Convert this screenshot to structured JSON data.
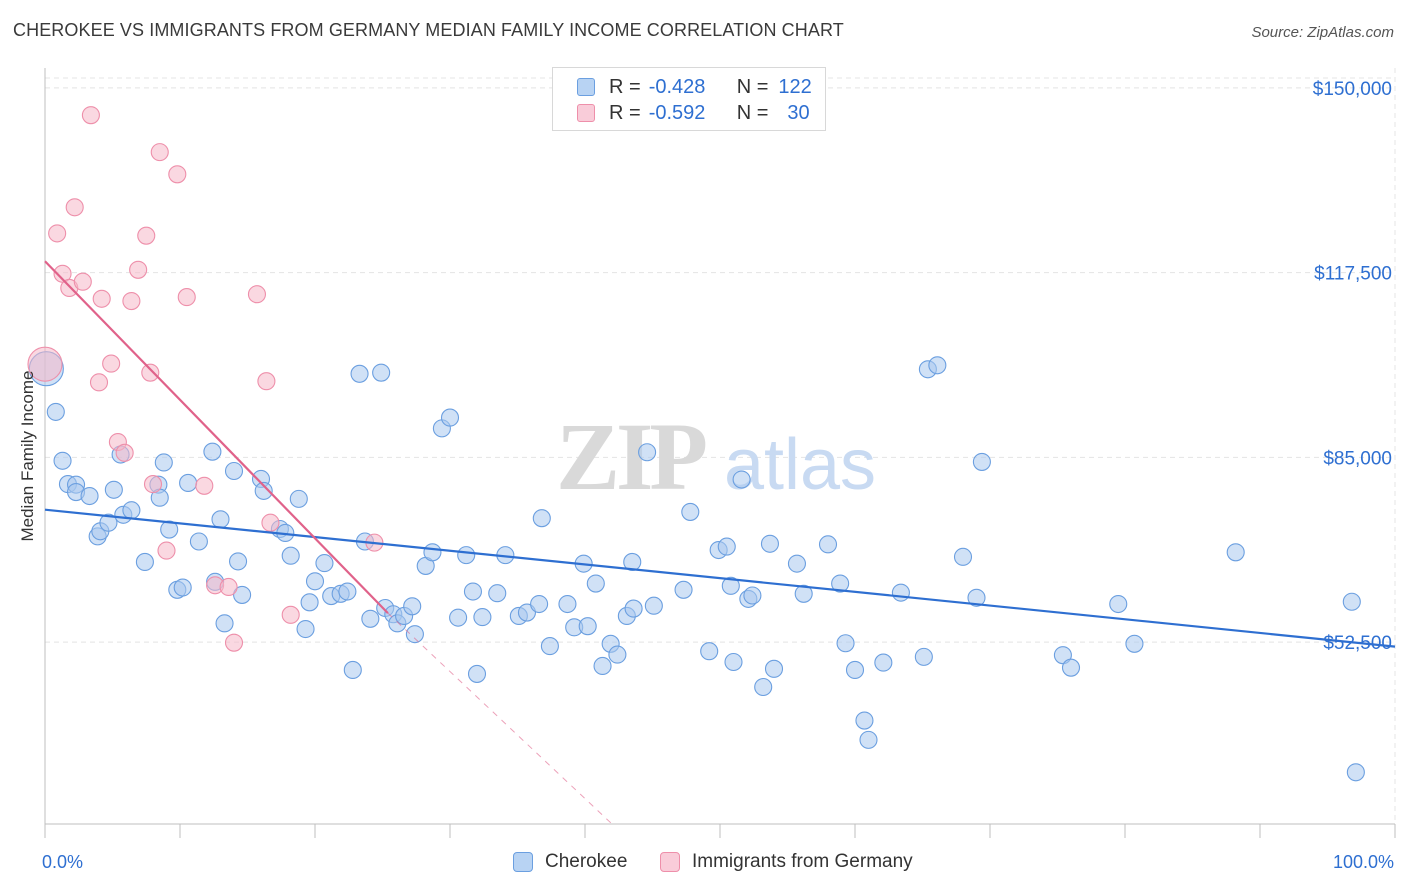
{
  "title": "CHEROKEE VS IMMIGRANTS FROM GERMANY MEDIAN FAMILY INCOME CORRELATION CHART",
  "source": "Source: ZipAtlas.com",
  "watermark": {
    "zip": "ZIP",
    "atlas": "atlas"
  },
  "legend_top": {
    "rows": [
      {
        "r_label": "R =",
        "r_value": "-0.428",
        "n_label": "N =",
        "n_value": "122"
      },
      {
        "r_label": "R =",
        "r_value": "-0.592",
        "n_label": "N =",
        "n_value": "30"
      }
    ]
  },
  "legend_bottom": [
    {
      "label": "Cherokee"
    },
    {
      "label": "Immigrants from Germany"
    }
  ],
  "colors": {
    "cherokee_fill": "#a9c9ef",
    "cherokee_stroke": "#6b9fe0",
    "cherokee_line": "#2e6fd1",
    "germany_fill": "#f6b8c9",
    "germany_stroke": "#ee8faa",
    "germany_line": "#e0628a",
    "axis_label": "#2e6fd1",
    "grid": "#e4e4e4"
  },
  "chart_data": {
    "type": "scatter",
    "title": "CHEROKEE VS IMMIGRANTS FROM GERMANY MEDIAN FAMILY INCOME CORRELATION CHART",
    "xlabel": "",
    "ylabel": "Median Family Income",
    "x_tick_labels": [
      "0.0%",
      "100.0%"
    ],
    "y_tick_labels": [
      "$150,000",
      "$117,500",
      "$85,000",
      "$52,500"
    ],
    "y_ticks": [
      150000,
      117500,
      85000,
      52500
    ],
    "xlim": [
      0,
      100
    ],
    "ylim": [
      20500,
      153500
    ],
    "grid": true,
    "series": [
      {
        "name": "Cherokee",
        "stats": {
          "R": -0.428,
          "N": 122
        },
        "trend": {
          "x": [
            0,
            100
          ],
          "y": [
            75800,
            51700
          ]
        },
        "points": [
          [
            0.1,
            100600
          ],
          [
            0.8,
            93000
          ],
          [
            1.3,
            84400
          ],
          [
            1.7,
            80300
          ],
          [
            2.3,
            80200
          ],
          [
            2.3,
            78900
          ],
          [
            3.3,
            78200
          ],
          [
            3.9,
            71100
          ],
          [
            4.1,
            72000
          ],
          [
            4.7,
            73500
          ],
          [
            5.6,
            85500
          ],
          [
            5.8,
            74900
          ],
          [
            5.1,
            79300
          ],
          [
            6.4,
            75700
          ],
          [
            7.4,
            66600
          ],
          [
            8.4,
            80200
          ],
          [
            8.5,
            77900
          ],
          [
            8.8,
            84100
          ],
          [
            9.2,
            72300
          ],
          [
            9.8,
            61700
          ],
          [
            10.2,
            62100
          ],
          [
            10.6,
            80500
          ],
          [
            11.4,
            70200
          ],
          [
            12.4,
            86000
          ],
          [
            12.6,
            63100
          ],
          [
            13.0,
            74100
          ],
          [
            13.3,
            55800
          ],
          [
            14.0,
            82600
          ],
          [
            14.3,
            66700
          ],
          [
            14.6,
            60800
          ],
          [
            16.0,
            81200
          ],
          [
            16.2,
            79100
          ],
          [
            17.4,
            72400
          ],
          [
            17.8,
            71700
          ],
          [
            18.2,
            67700
          ],
          [
            18.8,
            77700
          ],
          [
            19.3,
            54800
          ],
          [
            19.6,
            59500
          ],
          [
            20.0,
            63200
          ],
          [
            20.7,
            66400
          ],
          [
            21.2,
            60600
          ],
          [
            21.9,
            61000
          ],
          [
            22.4,
            61400
          ],
          [
            22.8,
            47600
          ],
          [
            23.3,
            99700
          ],
          [
            23.7,
            70200
          ],
          [
            24.1,
            56600
          ],
          [
            24.9,
            99900
          ],
          [
            25.2,
            58500
          ],
          [
            25.8,
            57400
          ],
          [
            26.1,
            55800
          ],
          [
            26.6,
            57100
          ],
          [
            27.2,
            58800
          ],
          [
            27.4,
            53900
          ],
          [
            28.2,
            65900
          ],
          [
            28.7,
            68300
          ],
          [
            29.4,
            90100
          ],
          [
            30.0,
            92000
          ],
          [
            30.6,
            56800
          ],
          [
            31.2,
            67800
          ],
          [
            31.7,
            61400
          ],
          [
            32.0,
            46900
          ],
          [
            32.4,
            56900
          ],
          [
            33.5,
            61100
          ],
          [
            34.1,
            67800
          ],
          [
            35.1,
            57100
          ],
          [
            35.7,
            57700
          ],
          [
            36.6,
            59200
          ],
          [
            36.8,
            74300
          ],
          [
            37.4,
            51800
          ],
          [
            38.7,
            59200
          ],
          [
            39.2,
            55100
          ],
          [
            39.9,
            66300
          ],
          [
            40.2,
            55300
          ],
          [
            40.8,
            62800
          ],
          [
            41.3,
            48300
          ],
          [
            41.9,
            52200
          ],
          [
            42.4,
            50300
          ],
          [
            43.1,
            57100
          ],
          [
            43.5,
            66600
          ],
          [
            43.6,
            58400
          ],
          [
            44.6,
            85900
          ],
          [
            45.1,
            58900
          ],
          [
            47.3,
            61700
          ],
          [
            47.8,
            75400
          ],
          [
            49.2,
            50900
          ],
          [
            49.9,
            68700
          ],
          [
            50.5,
            69300
          ],
          [
            50.8,
            62400
          ],
          [
            51.0,
            49000
          ],
          [
            51.6,
            81100
          ],
          [
            52.1,
            60100
          ],
          [
            52.4,
            60700
          ],
          [
            53.2,
            44600
          ],
          [
            53.7,
            69800
          ],
          [
            54.0,
            47800
          ],
          [
            55.7,
            66300
          ],
          [
            56.2,
            61000
          ],
          [
            58.0,
            69700
          ],
          [
            58.9,
            62800
          ],
          [
            59.3,
            52300
          ],
          [
            60.0,
            47600
          ],
          [
            60.7,
            38700
          ],
          [
            61.0,
            35300
          ],
          [
            62.1,
            48900
          ],
          [
            63.4,
            61200
          ],
          [
            65.1,
            49900
          ],
          [
            65.4,
            100500
          ],
          [
            66.1,
            101200
          ],
          [
            68.0,
            67500
          ],
          [
            69.0,
            60300
          ],
          [
            69.4,
            84200
          ],
          [
            75.4,
            50200
          ],
          [
            76.0,
            48000
          ],
          [
            79.5,
            59200
          ],
          [
            80.7,
            52200
          ],
          [
            88.2,
            68300
          ],
          [
            96.8,
            59600
          ],
          [
            97.1,
            29600
          ]
        ]
      },
      {
        "name": "Immigrants from Germany",
        "stats": {
          "R": -0.592,
          "N": 30
        },
        "trend": {
          "x": [
            0,
            25.4
          ],
          "y": [
            119500,
            57600
          ]
        },
        "trend_dashed": {
          "x": [
            25.4,
            42
          ],
          "y": [
            57600,
            20500
          ]
        },
        "points": [
          [
            0.0,
            101400
          ],
          [
            0.9,
            124400
          ],
          [
            1.3,
            117300
          ],
          [
            1.8,
            114800
          ],
          [
            2.2,
            129000
          ],
          [
            2.8,
            115900
          ],
          [
            3.4,
            145200
          ],
          [
            4.2,
            112900
          ],
          [
            4.0,
            98200
          ],
          [
            4.9,
            101500
          ],
          [
            5.4,
            87700
          ],
          [
            5.9,
            85800
          ],
          [
            6.4,
            112500
          ],
          [
            6.9,
            118000
          ],
          [
            7.5,
            124000
          ],
          [
            7.8,
            99900
          ],
          [
            8.0,
            80300
          ],
          [
            8.5,
            138700
          ],
          [
            9.0,
            68600
          ],
          [
            9.8,
            134800
          ],
          [
            10.5,
            113200
          ],
          [
            11.8,
            80000
          ],
          [
            12.6,
            62500
          ],
          [
            13.6,
            62200
          ],
          [
            14.0,
            52400
          ],
          [
            15.7,
            113700
          ],
          [
            16.4,
            98400
          ],
          [
            16.7,
            73500
          ],
          [
            18.2,
            57300
          ],
          [
            24.4,
            70000
          ]
        ]
      }
    ]
  }
}
